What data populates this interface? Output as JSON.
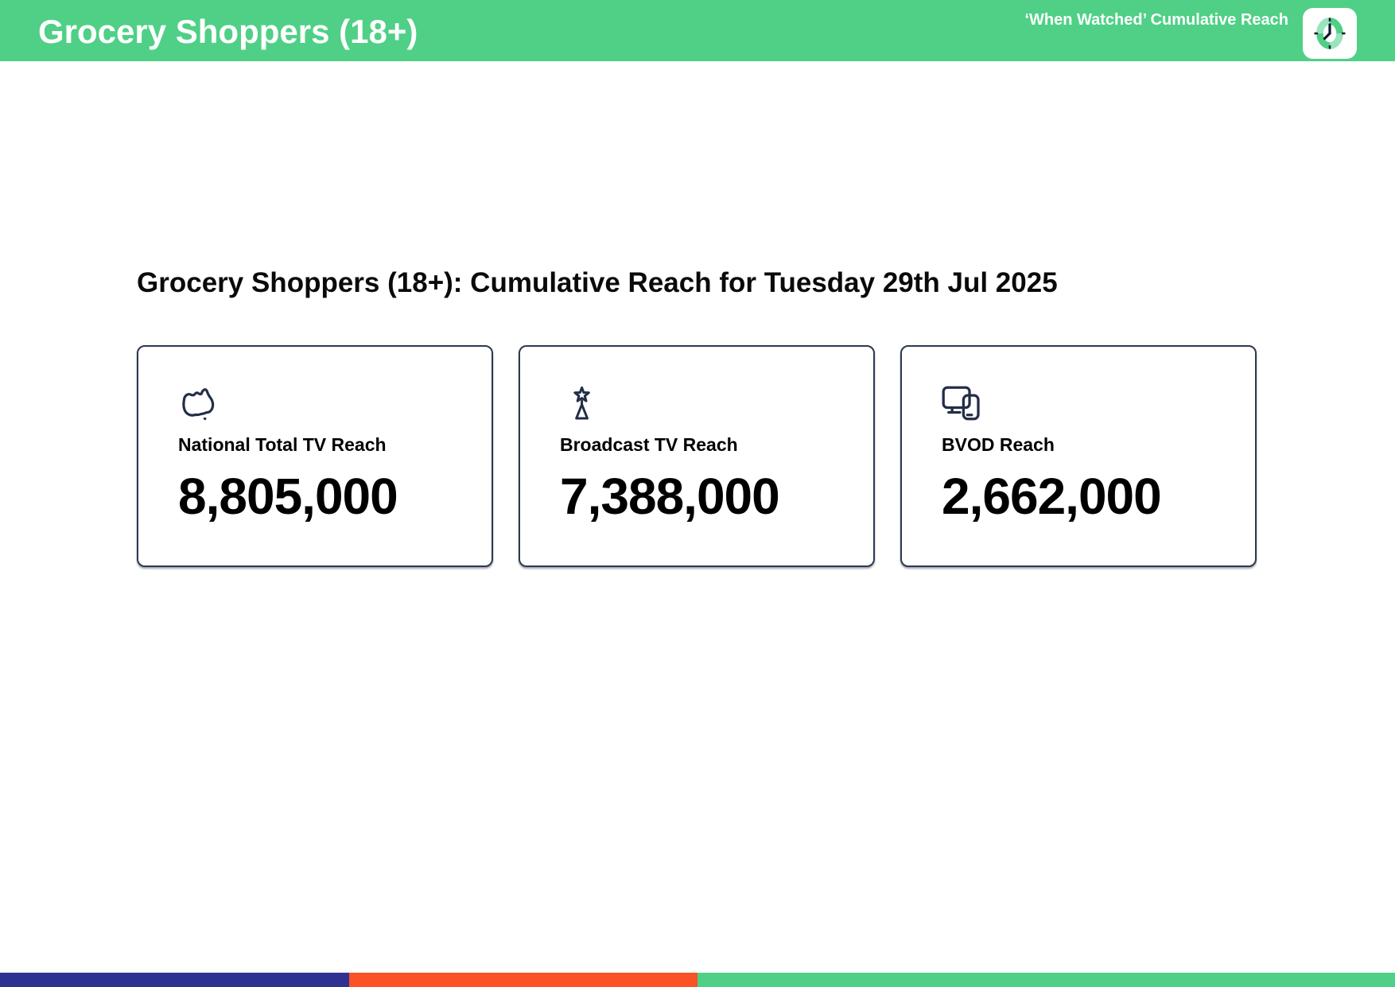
{
  "theme": {
    "green": "#4fd086",
    "navy": "#232e48",
    "blue": "#2e3192",
    "orange": "#fb5126"
  },
  "header": {
    "title": "Grocery Shoppers (18+)",
    "right_label": "‘When Watched’ Cumulative Reach",
    "bg_color": "#4fd086",
    "logo": "clock-logo"
  },
  "main": {
    "heading": "Grocery Shoppers (18+): Cumulative Reach for Tuesday 29th Jul 2025",
    "cards": [
      {
        "icon": "australia-map-icon",
        "label": "National Total TV Reach",
        "value": "8,805,000"
      },
      {
        "icon": "broadcast-tower-icon",
        "label": "Broadcast TV Reach",
        "value": "7,388,000"
      },
      {
        "icon": "tv-and-phone-icon",
        "label": "BVOD Reach",
        "value": "2,662,000"
      }
    ]
  },
  "footer": {
    "segments": [
      {
        "name": "blue",
        "color": "#2e3192",
        "width_pct": 25
      },
      {
        "name": "orange",
        "color": "#fb5126",
        "width_pct": 25
      },
      {
        "name": "green",
        "color": "#4fd086",
        "width_pct": 50
      }
    ]
  }
}
